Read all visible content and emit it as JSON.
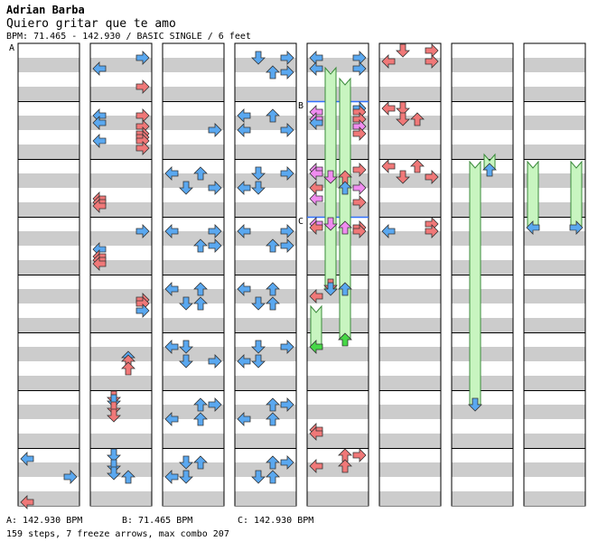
{
  "header": {
    "artist": "Adrian Barba",
    "title": "Quiero gritar que te amo",
    "info": "BPM: 71.465 - 142.930 / BASIC SINGLE / 6 feet"
  },
  "markers": [
    {
      "label": "A",
      "column": 0,
      "measure": 0
    },
    {
      "label": "B",
      "column": 4,
      "measure": 1
    },
    {
      "label": "C",
      "column": 4,
      "measure": 3
    }
  ],
  "footer": {
    "bpm_a": "A: 142.930 BPM",
    "bpm_b": "B: 71.465 BPM",
    "bpm_c": "C: 142.930 BPM",
    "stats": "159 steps, 7 freeze arrows, max combo 207"
  },
  "colors": {
    "quarter": "#5aa8f0",
    "eighth": "#f07878",
    "sixteenth": "#f08cf0",
    "other": "#46d846",
    "freeze": "#c8f5c0",
    "stripe": "#cccccc"
  },
  "lanes": [
    "left",
    "down",
    "up",
    "right"
  ],
  "chart_data": {
    "type": "dance-step-chart",
    "mode": "BASIC SINGLE",
    "difficulty_feet": 6,
    "bpm": {
      "min": 71.465,
      "max": 142.93
    },
    "total_steps": 159,
    "freeze_arrows": 7,
    "max_combo": 207,
    "measures_per_column": 8,
    "notes": [
      [
        0,
        7,
        1,
        0,
        "q"
      ],
      [
        0,
        7,
        6,
        3,
        "q"
      ],
      [
        0,
        7,
        13,
        0,
        "e"
      ],
      [
        1,
        0,
        2,
        3,
        "q"
      ],
      [
        1,
        0,
        5,
        0,
        "q"
      ],
      [
        1,
        0,
        10,
        3,
        "e"
      ],
      [
        1,
        1,
        2,
        0,
        "q"
      ],
      [
        1,
        1,
        4,
        0,
        "q"
      ],
      [
        1,
        1,
        2,
        3,
        "e"
      ],
      [
        1,
        1,
        5,
        3,
        "e"
      ],
      [
        1,
        1,
        7,
        3,
        "e"
      ],
      [
        1,
        1,
        8,
        3,
        "e"
      ],
      [
        1,
        1,
        9,
        0,
        "q"
      ],
      [
        1,
        1,
        9,
        3,
        "e"
      ],
      [
        1,
        1,
        11,
        3,
        "e"
      ],
      [
        1,
        2,
        9,
        0,
        "e"
      ],
      [
        1,
        2,
        10,
        0,
        "e"
      ],
      [
        1,
        2,
        11,
        0,
        "e"
      ],
      [
        1,
        3,
        2,
        3,
        "q"
      ],
      [
        1,
        3,
        7,
        0,
        "q"
      ],
      [
        1,
        3,
        9,
        0,
        "e"
      ],
      [
        1,
        3,
        10,
        0,
        "e"
      ],
      [
        1,
        3,
        11,
        0,
        "e"
      ],
      [
        1,
        4,
        5,
        3,
        "e"
      ],
      [
        1,
        4,
        6,
        3,
        "e"
      ],
      [
        1,
        4,
        8,
        3,
        "q"
      ],
      [
        1,
        5,
        5,
        2,
        "q"
      ],
      [
        1,
        5,
        6,
        2,
        "e"
      ],
      [
        1,
        5,
        8,
        2,
        "e"
      ],
      [
        1,
        6,
        0,
        1,
        "e"
      ],
      [
        1,
        6,
        1,
        1,
        "q"
      ],
      [
        1,
        6,
        3,
        1,
        "e"
      ],
      [
        1,
        6,
        5,
        1,
        "e"
      ],
      [
        1,
        7,
        0,
        1,
        "q"
      ],
      [
        1,
        7,
        3,
        1,
        "q"
      ],
      [
        1,
        7,
        5,
        1,
        "q"
      ],
      [
        1,
        7,
        6,
        2,
        "q"
      ],
      [
        2,
        1,
        6,
        3,
        "q"
      ],
      [
        2,
        2,
        2,
        0,
        "q"
      ],
      [
        2,
        2,
        2,
        2,
        "q"
      ],
      [
        2,
        2,
        6,
        1,
        "q"
      ],
      [
        2,
        2,
        6,
        3,
        "q"
      ],
      [
        2,
        3,
        2,
        0,
        "q"
      ],
      [
        2,
        3,
        2,
        3,
        "q"
      ],
      [
        2,
        3,
        6,
        2,
        "q"
      ],
      [
        2,
        3,
        6,
        3,
        "q"
      ],
      [
        2,
        4,
        2,
        0,
        "q"
      ],
      [
        2,
        4,
        2,
        2,
        "q"
      ],
      [
        2,
        4,
        6,
        1,
        "q"
      ],
      [
        2,
        4,
        6,
        2,
        "q"
      ],
      [
        2,
        5,
        2,
        0,
        "q"
      ],
      [
        2,
        5,
        2,
        1,
        "q"
      ],
      [
        2,
        5,
        6,
        1,
        "q"
      ],
      [
        2,
        5,
        6,
        3,
        "q"
      ],
      [
        2,
        6,
        2,
        2,
        "q"
      ],
      [
        2,
        6,
        2,
        3,
        "q"
      ],
      [
        2,
        6,
        6,
        0,
        "q"
      ],
      [
        2,
        6,
        6,
        2,
        "q"
      ],
      [
        2,
        7,
        2,
        1,
        "q"
      ],
      [
        2,
        7,
        2,
        2,
        "q"
      ],
      [
        2,
        7,
        6,
        0,
        "q"
      ],
      [
        2,
        7,
        6,
        1,
        "q"
      ],
      [
        3,
        0,
        2,
        1,
        "q"
      ],
      [
        3,
        0,
        2,
        3,
        "q"
      ],
      [
        3,
        0,
        6,
        2,
        "q"
      ],
      [
        3,
        0,
        6,
        3,
        "q"
      ],
      [
        3,
        1,
        2,
        0,
        "q"
      ],
      [
        3,
        1,
        2,
        2,
        "q"
      ],
      [
        3,
        1,
        6,
        0,
        "q"
      ],
      [
        3,
        1,
        6,
        3,
        "q"
      ],
      [
        3,
        2,
        2,
        1,
        "q"
      ],
      [
        3,
        2,
        2,
        3,
        "q"
      ],
      [
        3,
        2,
        6,
        0,
        "q"
      ],
      [
        3,
        2,
        6,
        1,
        "q"
      ],
      [
        3,
        3,
        2,
        0,
        "q"
      ],
      [
        3,
        3,
        2,
        3,
        "q"
      ],
      [
        3,
        3,
        6,
        2,
        "q"
      ],
      [
        3,
        3,
        6,
        3,
        "q"
      ],
      [
        3,
        4,
        2,
        0,
        "q"
      ],
      [
        3,
        4,
        2,
        2,
        "q"
      ],
      [
        3,
        4,
        6,
        1,
        "q"
      ],
      [
        3,
        4,
        6,
        2,
        "q"
      ],
      [
        3,
        5,
        2,
        1,
        "q"
      ],
      [
        3,
        5,
        2,
        3,
        "q"
      ],
      [
        3,
        5,
        6,
        0,
        "q"
      ],
      [
        3,
        5,
        6,
        1,
        "q"
      ],
      [
        3,
        6,
        2,
        2,
        "q"
      ],
      [
        3,
        6,
        2,
        3,
        "q"
      ],
      [
        3,
        6,
        6,
        0,
        "q"
      ],
      [
        3,
        6,
        6,
        2,
        "q"
      ],
      [
        3,
        7,
        2,
        2,
        "q"
      ],
      [
        3,
        7,
        2,
        3,
        "q"
      ],
      [
        3,
        7,
        6,
        1,
        "q"
      ],
      [
        3,
        7,
        6,
        2,
        "q"
      ],
      [
        4,
        0,
        2,
        0,
        "q"
      ],
      [
        4,
        0,
        2,
        3,
        "q"
      ],
      [
        4,
        0,
        5,
        0,
        "q"
      ],
      [
        4,
        0,
        5,
        3,
        "q"
      ],
      [
        4,
        1,
        0,
        3,
        "q"
      ],
      [
        4,
        1,
        1,
        0,
        "s"
      ],
      [
        4,
        1,
        1,
        3,
        "e"
      ],
      [
        4,
        1,
        3,
        0,
        "s"
      ],
      [
        4,
        1,
        3,
        3,
        "e"
      ],
      [
        4,
        1,
        4,
        0,
        "q"
      ],
      [
        4,
        1,
        5,
        3,
        "s"
      ],
      [
        4,
        1,
        7,
        3,
        "e"
      ],
      [
        4,
        2,
        1,
        0,
        "s"
      ],
      [
        4,
        2,
        1,
        3,
        "e"
      ],
      [
        4,
        2,
        2,
        0,
        "s"
      ],
      [
        4,
        2,
        3,
        1,
        "s"
      ],
      [
        4,
        2,
        3,
        2,
        "e"
      ],
      [
        4,
        2,
        6,
        0,
        "e"
      ],
      [
        4,
        2,
        6,
        2,
        "q"
      ],
      [
        4,
        2,
        6,
        3,
        "s"
      ],
      [
        4,
        2,
        9,
        0,
        "s"
      ],
      [
        4,
        2,
        10,
        3,
        "e"
      ],
      [
        4,
        3,
        0,
        0,
        "s"
      ],
      [
        4,
        3,
        0,
        1,
        "s"
      ],
      [
        4,
        3,
        1,
        0,
        "e"
      ],
      [
        4,
        3,
        1,
        2,
        "s"
      ],
      [
        4,
        3,
        1,
        3,
        "e"
      ],
      [
        4,
        3,
        2,
        3,
        "e"
      ],
      [
        4,
        4,
        1,
        1,
        "e"
      ],
      [
        4,
        4,
        2,
        2,
        "q"
      ],
      [
        4,
        4,
        4,
        0,
        "e"
      ],
      [
        4,
        6,
        9,
        0,
        "e"
      ],
      [
        4,
        6,
        10,
        0,
        "e"
      ],
      [
        4,
        7,
        0,
        2,
        "e"
      ],
      [
        4,
        7,
        0,
        3,
        "e"
      ],
      [
        4,
        7,
        3,
        0,
        "e"
      ],
      [
        4,
        7,
        3,
        2,
        "e"
      ],
      [
        5,
        0,
        0,
        1,
        "e"
      ],
      [
        5,
        0,
        0,
        3,
        "e"
      ],
      [
        5,
        0,
        3,
        0,
        "e"
      ],
      [
        5,
        0,
        3,
        3,
        "e"
      ],
      [
        5,
        1,
        0,
        0,
        "e"
      ],
      [
        5,
        1,
        0,
        1,
        "e"
      ],
      [
        5,
        1,
        3,
        1,
        "e"
      ],
      [
        5,
        1,
        3,
        2,
        "e"
      ],
      [
        5,
        2,
        0,
        0,
        "e"
      ],
      [
        5,
        2,
        0,
        2,
        "e"
      ],
      [
        5,
        2,
        3,
        1,
        "e"
      ],
      [
        5,
        2,
        3,
        3,
        "e"
      ],
      [
        5,
        3,
        0,
        3,
        "e"
      ],
      [
        5,
        3,
        2,
        0,
        "q"
      ],
      [
        5,
        3,
        2,
        3,
        "e"
      ]
    ],
    "freezes": [
      [
        4,
        4,
        2,
        1,
        0,
        4
      ],
      [
        4,
        5,
        2,
        0,
        4,
        6
      ],
      [
        4,
        5,
        0,
        2,
        0,
        7
      ],
      [
        6,
        2,
        1,
        2,
        1,
        12
      ],
      [
        6,
        6,
        2,
        1,
        1,
        14
      ],
      [
        7,
        3,
        1,
        0,
        1,
        14
      ],
      [
        7,
        3,
        1,
        3,
        1,
        14
      ]
    ]
  }
}
